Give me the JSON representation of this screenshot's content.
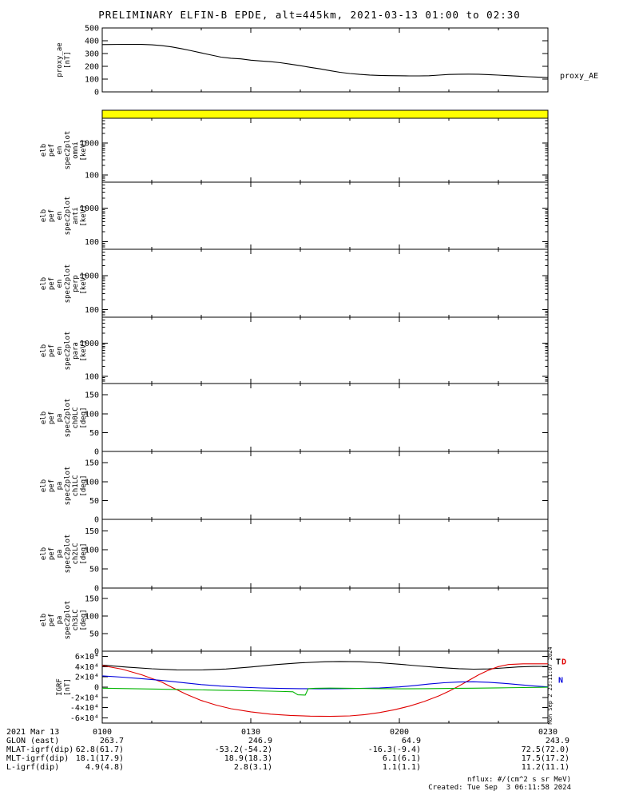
{
  "title": "PRELIMINARY ELFIN-B EPDE, alt=445km, 2021-03-13 01:00 to 02:30",
  "right_labels": {
    "proxy_ae": "proxy_AE"
  },
  "xaxis": {
    "range_min": [
      0,
      90
    ],
    "ticks_min": [
      0,
      30,
      60,
      90
    ],
    "minor_min": [
      10,
      20,
      40,
      50,
      70,
      80
    ],
    "tick_labels": [
      "0100",
      "0130",
      "0200",
      "0230"
    ]
  },
  "chart_data": [
    {
      "id": "proxy_ae",
      "type": "line",
      "ylabel_lines": [
        "proxy_ae",
        "[nT]"
      ],
      "ylim": [
        0,
        500
      ],
      "yticks": [
        0,
        100,
        200,
        300,
        400,
        500
      ],
      "ytick_labels": [
        "0",
        "100",
        "200",
        "300",
        "400",
        "500"
      ],
      "series": [
        {
          "name": "proxy_AE",
          "color": "#000000",
          "x": [
            0,
            4,
            8,
            10,
            12,
            14,
            16,
            18,
            20,
            22,
            24,
            26,
            28,
            30,
            32,
            34,
            36,
            38,
            40,
            42,
            44,
            46,
            48,
            50,
            52,
            54,
            56,
            58,
            60,
            62,
            64,
            66,
            68,
            70,
            72,
            74,
            76,
            78,
            80,
            82,
            84,
            86,
            88,
            90
          ],
          "y": [
            370,
            372,
            371,
            368,
            362,
            352,
            338,
            322,
            305,
            288,
            272,
            263,
            258,
            248,
            242,
            236,
            228,
            217,
            205,
            192,
            180,
            166,
            153,
            144,
            137,
            132,
            129,
            127,
            126,
            125,
            125,
            126,
            131,
            136,
            138,
            139,
            138,
            135,
            131,
            127,
            123,
            119,
            115,
            112
          ]
        }
      ]
    },
    {
      "id": "availability_strip",
      "type": "strip",
      "color": "#ffff00"
    },
    {
      "id": "en_spec2plot_omni",
      "type": "spec",
      "yscale": "log",
      "ylabel_lines": [
        "elb",
        "pef",
        "en",
        "spec2plot",
        "omni",
        "[keV]"
      ],
      "ylim": [
        60,
        6000
      ],
      "yticks": [
        100,
        1000
      ],
      "ytick_labels": [
        "100",
        "1000"
      ]
    },
    {
      "id": "en_spec2plot_anti",
      "type": "spec",
      "yscale": "log",
      "ylabel_lines": [
        "elb",
        "pef",
        "en",
        "spec2plot",
        "anti",
        "[keV]"
      ],
      "ylim": [
        60,
        6000
      ],
      "yticks": [
        100,
        1000
      ],
      "ytick_labels": [
        "100",
        "1000"
      ]
    },
    {
      "id": "en_spec2plot_perp",
      "type": "spec",
      "yscale": "log",
      "ylabel_lines": [
        "elb",
        "pef",
        "en",
        "spec2plot",
        "perp",
        "[keV]"
      ],
      "ylim": [
        60,
        6000
      ],
      "yticks": [
        100,
        1000
      ],
      "ytick_labels": [
        "100",
        "1000"
      ]
    },
    {
      "id": "en_spec2plot_para",
      "type": "spec",
      "yscale": "log",
      "ylabel_lines": [
        "elb",
        "pef",
        "en",
        "spec2plot",
        "para",
        "[keV]"
      ],
      "ylim": [
        60,
        6000
      ],
      "yticks": [
        100,
        1000
      ],
      "ytick_labels": [
        "100",
        "1000"
      ]
    },
    {
      "id": "pa_spec2plot_ch0LC",
      "type": "spec",
      "ylabel_lines": [
        "elb",
        "pef",
        "pa",
        "spec2plot",
        "ch0LC",
        "[deg]"
      ],
      "ylim": [
        0,
        180
      ],
      "yticks": [
        0,
        50,
        100,
        150
      ],
      "ytick_labels": [
        "0",
        "50",
        "100",
        "150"
      ]
    },
    {
      "id": "pa_spec2plot_ch1LC",
      "type": "spec",
      "ylabel_lines": [
        "elb",
        "pef",
        "pa",
        "spec2plot",
        "ch1LC",
        "[deg]"
      ],
      "ylim": [
        0,
        180
      ],
      "yticks": [
        0,
        50,
        100,
        150
      ],
      "ytick_labels": [
        "0",
        "50",
        "100",
        "150"
      ]
    },
    {
      "id": "pa_spec2plot_ch2LC",
      "type": "spec",
      "ylabel_lines": [
        "elb",
        "pef",
        "pa",
        "spec2plot",
        "ch2LC",
        "[deg]"
      ],
      "ylim": [
        0,
        180
      ],
      "yticks": [
        0,
        50,
        100,
        150
      ],
      "ytick_labels": [
        "0",
        "50",
        "100",
        "150"
      ]
    },
    {
      "id": "pa_spec2plot_ch3LC",
      "type": "spec",
      "ylabel_lines": [
        "elb",
        "pef",
        "pa",
        "spec2plot",
        "ch3LC",
        "[deg]"
      ],
      "ylim": [
        0,
        180
      ],
      "yticks": [
        0,
        50,
        100,
        150
      ],
      "ytick_labels": [
        "0",
        "50",
        "100",
        "150"
      ]
    },
    {
      "id": "igrf",
      "type": "line",
      "ylabel_lines": [
        "IGRF",
        "[nT]"
      ],
      "ylim": [
        -70000,
        70000
      ],
      "yticks": [
        -60000,
        -40000,
        -20000,
        0,
        20000,
        40000,
        60000
      ],
      "ytick_labels": [
        "-6×10⁴",
        "-4×10⁴",
        "-2×10⁴",
        "0",
        "2×10⁴",
        "4×10⁴",
        "6×10⁴"
      ],
      "series": [
        {
          "name": "T",
          "color": "#000000",
          "x": [
            0,
            5,
            10,
            15,
            20,
            25,
            30,
            35,
            40,
            45,
            48,
            52,
            56,
            60,
            64,
            68,
            72,
            75,
            78,
            81,
            84,
            87,
            90
          ],
          "y": [
            43000,
            39000,
            35800,
            33600,
            33400,
            35300,
            39200,
            43800,
            47300,
            49400,
            50000,
            49400,
            47400,
            44600,
            41200,
            38200,
            36000,
            35000,
            35400,
            37300,
            39300,
            40300,
            40500
          ]
        },
        {
          "name": "D",
          "color": "#e00000",
          "x": [
            0,
            4,
            8,
            12,
            14,
            17,
            20,
            23,
            26,
            30,
            34,
            38,
            42,
            46,
            50,
            53,
            56,
            59,
            62,
            65,
            68,
            70,
            72,
            74,
            76,
            78,
            80,
            82,
            85,
            90
          ],
          "y": [
            42000,
            35000,
            24000,
            10000,
            0,
            -14000,
            -26000,
            -35000,
            -42000,
            -48000,
            -52500,
            -55000,
            -56500,
            -57000,
            -56000,
            -53500,
            -49500,
            -44000,
            -37000,
            -28000,
            -17000,
            -8000,
            2000,
            13000,
            24000,
            33000,
            40000,
            44000,
            45500,
            45500
          ]
        },
        {
          "name": "N",
          "color": "#0000dd",
          "x": [
            0,
            4,
            8,
            12,
            16,
            20,
            24,
            28,
            32,
            36,
            40,
            44,
            48,
            52,
            56,
            60,
            63,
            66,
            69,
            72,
            75,
            78,
            81,
            84,
            87,
            90
          ],
          "y": [
            22000,
            19500,
            16500,
            13000,
            9000,
            5000,
            2000,
            0,
            -1500,
            -2500,
            -3000,
            -3200,
            -3000,
            -2500,
            -1500,
            500,
            3000,
            6000,
            8500,
            10000,
            10500,
            9500,
            7500,
            5000,
            2500,
            500
          ]
        },
        {
          "name": "E",
          "color": "#00b400",
          "x": [
            0,
            6,
            12,
            18,
            24,
            30,
            34,
            37,
            38.5,
            39.5,
            41,
            41.6,
            43,
            46,
            50,
            55,
            60,
            65,
            70,
            75,
            80,
            85,
            90
          ],
          "y": [
            -2000,
            -3000,
            -4000,
            -5000,
            -6000,
            -7000,
            -7800,
            -8600,
            -9000,
            -15000,
            -15400,
            -3000,
            -2200,
            -1900,
            -2200,
            -2800,
            -3200,
            -3000,
            -2500,
            -2000,
            -1400,
            -800,
            -200
          ]
        }
      ],
      "end_letters": [
        {
          "text": "T",
          "color": "#000000",
          "value": 50000,
          "dx": 10
        },
        {
          "text": "D",
          "color": "#e00000",
          "value": 50000,
          "dx": 17
        },
        {
          "text": "N",
          "color": "#0000dd",
          "value": 14000,
          "dx": 13
        }
      ]
    }
  ],
  "footer": {
    "rows": [
      {
        "label": "2021 Mar 13",
        "values": [
          "0100",
          "0130",
          "0200",
          "0230"
        ]
      },
      {
        "label": "GLON (east)",
        "values": [
          "263.7",
          "246.9",
          "64.9",
          "243.9"
        ]
      },
      {
        "label": "MLAT-igrf(dip)",
        "values": [
          "62.8(61.7)",
          "-53.2(-54.2)",
          "-16.3(-9.4)",
          "72.5(72.0)"
        ]
      },
      {
        "label": "MLT-igrf(dip)",
        "values": [
          "18.1(17.9)",
          "18.9(18.3)",
          "6.1(6.1)",
          "17.5(17.2)"
        ]
      },
      {
        "label": "L-igrf(dip)",
        "values": [
          "4.9(4.8)",
          "2.8(3.1)",
          "1.1(1.1)",
          "11.2(11.1)"
        ]
      }
    ]
  },
  "notes": {
    "nflux": "nflux: #/(cm^2 s sr MeV)",
    "created": "Created: Tue Sep  3 06:11:58 2024",
    "side_timestamp": "Mon Sep  2 23:11:07 2024"
  }
}
